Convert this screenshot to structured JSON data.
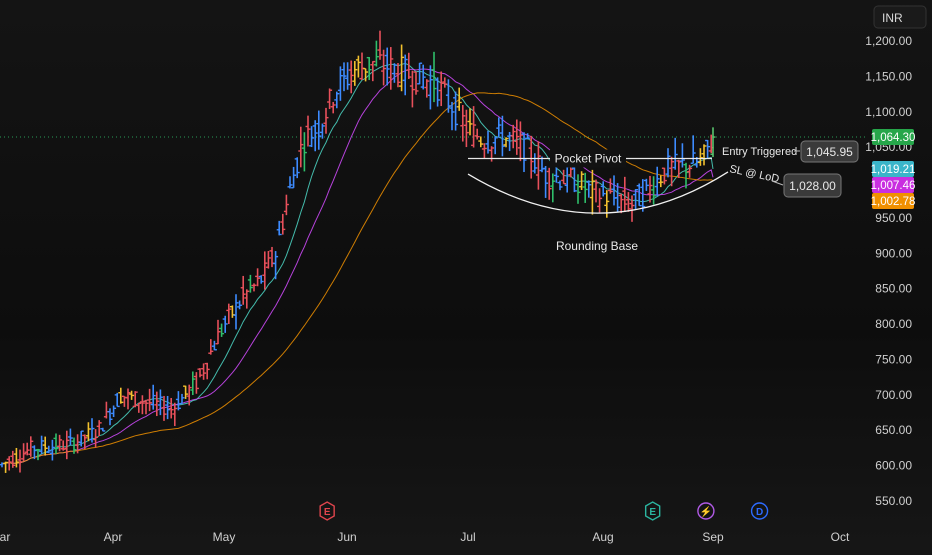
{
  "currency_label": "INR",
  "chart_data": {
    "type": "candlestick",
    "currency": "INR",
    "x_ticks": [
      "Mar",
      "Apr",
      "May",
      "Jun",
      "Jul",
      "Aug",
      "Sep",
      "Oct"
    ],
    "y_ticks": [
      {
        "value": 1200,
        "label": "1,200.00"
      },
      {
        "value": 1150,
        "label": "1,150.00"
      },
      {
        "value": 1100,
        "label": "1,100.00"
      },
      {
        "value": 1050,
        "label": "1,050.00"
      },
      {
        "value": 950,
        "label": "950.00"
      },
      {
        "value": 900,
        "label": "900.00"
      },
      {
        "value": 850,
        "label": "850.00"
      },
      {
        "value": 800,
        "label": "800.00"
      },
      {
        "value": 750,
        "label": "750.00"
      },
      {
        "value": 700,
        "label": "700.00"
      },
      {
        "value": 650,
        "label": "650.00"
      },
      {
        "value": 600,
        "label": "600.00"
      },
      {
        "value": 550,
        "label": "550.00"
      }
    ],
    "ylim": [
      530,
      1225
    ],
    "price_path": [
      [
        "2025-03-01",
        600
      ],
      [
        "2025-03-10",
        625
      ],
      [
        "2025-03-20",
        630
      ],
      [
        "2025-03-28",
        650
      ],
      [
        "2025-04-03",
        700
      ],
      [
        "2025-04-10",
        690
      ],
      [
        "2025-04-17",
        680
      ],
      [
        "2025-04-24",
        720
      ],
      [
        "2025-04-30",
        790
      ],
      [
        "2025-05-06",
        840
      ],
      [
        "2025-05-10",
        860
      ],
      [
        "2025-05-14",
        900
      ],
      [
        "2025-05-18",
        1000
      ],
      [
        "2025-05-21",
        1060
      ],
      [
        "2025-05-25",
        1080
      ],
      [
        "2025-05-29",
        1130
      ],
      [
        "2025-06-03",
        1160
      ],
      [
        "2025-06-08",
        1170
      ],
      [
        "2025-06-13",
        1160
      ],
      [
        "2025-06-18",
        1150
      ],
      [
        "2025-06-23",
        1140
      ],
      [
        "2025-06-27",
        1110
      ],
      [
        "2025-07-01",
        1075
      ],
      [
        "2025-07-05",
        1060
      ],
      [
        "2025-07-09",
        1065
      ],
      [
        "2025-07-14",
        1050
      ],
      [
        "2025-07-19",
        1010
      ],
      [
        "2025-07-25",
        1005
      ],
      [
        "2025-07-30",
        985
      ],
      [
        "2025-08-04",
        978
      ],
      [
        "2025-08-09",
        970
      ],
      [
        "2025-08-14",
        990
      ],
      [
        "2025-08-19",
        1020
      ],
      [
        "2025-08-25",
        1025
      ],
      [
        "2025-08-29",
        1030
      ],
      [
        "2025-09-01",
        1064.3
      ]
    ],
    "moving_averages": [
      {
        "color": "#4dd9c8",
        "last_value": 1019.21
      },
      {
        "color": "#d44bff",
        "last_value": 1007.46
      },
      {
        "color": "#f09000",
        "last_value": 1002.78
      }
    ],
    "price_badges": [
      {
        "value": 1064.3,
        "label": "1,064.30",
        "color": "#26a64a"
      },
      {
        "value": 1019.21,
        "label": "1,019.21",
        "color": "#3ab5c9"
      },
      {
        "value": 1007.46,
        "label": "1,007.46",
        "color": "#c92ee0"
      },
      {
        "value": 1002.78,
        "label": "1,002.78",
        "color": "#f09000"
      }
    ],
    "last_price": 1064.3,
    "annotations": {
      "pocket_pivot": {
        "label": "Pocket Pivot",
        "value": 1034
      },
      "entry": {
        "label": "Entry Triggered",
        "value": 1045.95,
        "value_label": "1,045.95"
      },
      "stop_loss": {
        "label": "SL @ LoD",
        "value": 1028.0,
        "value_label": "1,028.00"
      },
      "rounding_base": {
        "label": "Rounding Base"
      }
    },
    "event_markers": [
      {
        "date": "2025-05-27",
        "letter": "E",
        "color": "#e0454d",
        "kind": "earnings"
      },
      {
        "date": "2025-08-15",
        "letter": "E",
        "color": "#2bb5a0",
        "kind": "earnings"
      },
      {
        "date": "2025-08-30",
        "letter": "⚡",
        "color": "#b15ae6",
        "kind": "split"
      },
      {
        "date": "2025-09-12",
        "letter": "D",
        "color": "#2d6bff",
        "kind": "dividend"
      }
    ]
  }
}
